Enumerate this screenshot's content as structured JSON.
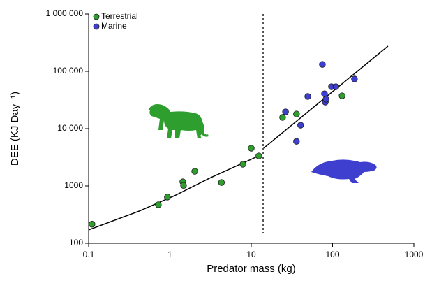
{
  "chart_data": {
    "type": "scatter",
    "x_label": "Predator mass (kg)",
    "y_label": "DEE (KJ Day⁻¹)",
    "log_x": true,
    "log_y": true,
    "xlim": [
      0.1,
      1000
    ],
    "xticks": [
      0.1,
      1,
      10,
      100,
      1000
    ],
    "ylim": [
      100,
      1000000
    ],
    "yticks": [
      100,
      1000,
      {
        "value": 10000,
        "label": "10 000"
      },
      {
        "value": 100000,
        "label": "100 000"
      },
      {
        "value": 1000000,
        "label": "1 000 000"
      }
    ],
    "legend": "upper left",
    "series": [
      {
        "name": "Terrestrial",
        "color": "#2e9e2e",
        "x": [
          0.11,
          0.72,
          0.93,
          1.44,
          1.47,
          2.02,
          4.3,
          7.9,
          10,
          12.4,
          24.3,
          36,
          131
        ],
        "values": [
          215,
          470,
          640,
          1180,
          1020,
          1800,
          1150,
          2390,
          4550,
          3340,
          15700,
          18000,
          37400
        ]
      },
      {
        "name": "Marine",
        "color": "#3f3fcf",
        "x": [
          26.4,
          36,
          40.5,
          49.6,
          75,
          79.6,
          81.5,
          83,
          97,
          110,
          186
        ],
        "values": [
          19600,
          6000,
          11500,
          36500,
          132000,
          40500,
          29000,
          32600,
          53800,
          53800,
          73500
        ]
      }
    ],
    "fits": [
      {
        "color": "#000000",
        "x": [
          0.1,
          0.42,
          1.14,
          3.05,
          12.9
        ],
        "values": [
          171,
          364,
          675,
          1360,
          3440
        ]
      },
      {
        "color": "#000000",
        "x": [
          14.2,
          481
        ],
        "values": [
          4560,
          275000
        ]
      }
    ],
    "threshold_x": 14
  }
}
